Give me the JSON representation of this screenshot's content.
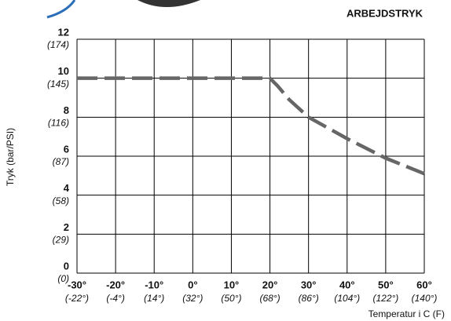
{
  "chart_data": {
    "type": "line",
    "title": "ARBEJDSTRYK",
    "y_label": "Tryk (bar/PSI)",
    "x_label": "Temperatur i C (F)",
    "xlim": [
      -30,
      60
    ],
    "xticks": [
      {
        "value": -30,
        "label": "-30°"
      },
      {
        "value": -20,
        "label": "-20°"
      },
      {
        "value": -10,
        "label": "-10°"
      },
      {
        "value": 0,
        "label": "0°"
      },
      {
        "value": 10,
        "label": "10°"
      },
      {
        "value": 20,
        "label": "20°"
      },
      {
        "value": 30,
        "label": "30°"
      },
      {
        "value": 40,
        "label": "40°"
      },
      {
        "value": 50,
        "label": "50°"
      },
      {
        "value": 60,
        "label": "60°"
      }
    ],
    "x2lim": [
      -22,
      140
    ],
    "x2ticks": [
      {
        "value": -22,
        "label": "(-22°)"
      },
      {
        "value": -4,
        "label": "(-4°)"
      },
      {
        "value": 14,
        "label": "(14°)"
      },
      {
        "value": 32,
        "label": "(32°)"
      },
      {
        "value": 50,
        "label": "(50°)"
      },
      {
        "value": 68,
        "label": "(68°)"
      },
      {
        "value": 86,
        "label": "(86°)"
      },
      {
        "value": 104,
        "label": "(104°)"
      },
      {
        "value": 122,
        "label": "(122°)"
      },
      {
        "value": 140,
        "label": "(140°)"
      }
    ],
    "ylim": [
      0,
      12
    ],
    "yticks": [
      0,
      2,
      4,
      6,
      8,
      10,
      12
    ],
    "y2lim": [
      0,
      174
    ],
    "y2ticks": [
      {
        "value": 0,
        "label": "(0)"
      },
      {
        "value": 29,
        "label": "(29)"
      },
      {
        "value": 58,
        "label": "(58)"
      },
      {
        "value": 87,
        "label": "(87)"
      },
      {
        "value": 116,
        "label": "(116)"
      },
      {
        "value": 145,
        "label": "(145)"
      },
      {
        "value": 174,
        "label": "(174)"
      }
    ],
    "grid": true,
    "series": [
      {
        "color": "#666666",
        "x": [
          -30,
          20,
          22,
          25,
          30,
          40,
          50,
          60
        ],
        "values": [
          10,
          10,
          9.6,
          8.9,
          8.0,
          6.9,
          5.9,
          5.1
        ]
      }
    ]
  }
}
